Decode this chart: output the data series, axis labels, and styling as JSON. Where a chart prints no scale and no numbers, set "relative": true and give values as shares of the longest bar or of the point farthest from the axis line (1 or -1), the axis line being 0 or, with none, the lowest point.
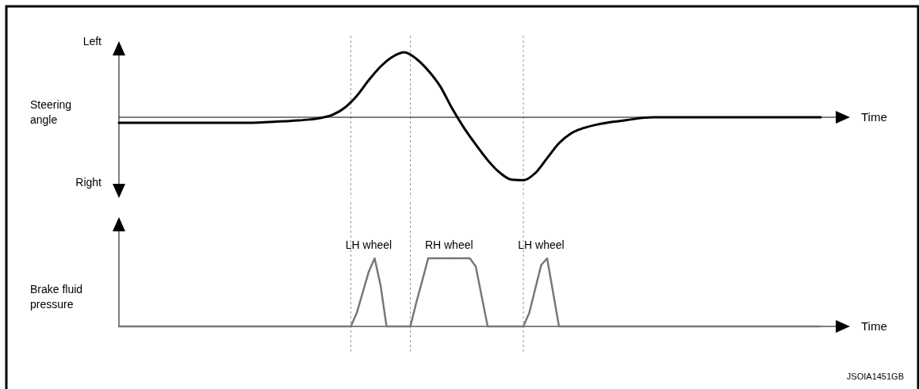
{
  "chart_data": [
    {
      "type": "line",
      "relative": true,
      "ylabel": "Steering angle",
      "xlabel": "Time",
      "line_style": "solid",
      "grid": "x",
      "annotations": [
        "Left",
        "Right"
      ],
      "categories": [
        null,
        null,
        null,
        null,
        null,
        null,
        null,
        null,
        null,
        null,
        null,
        null,
        null,
        null,
        null,
        null,
        null,
        null,
        null,
        null,
        null,
        null,
        null,
        null,
        null,
        null,
        null,
        null,
        null,
        null,
        null,
        null,
        null,
        null,
        null,
        null,
        null,
        null,
        null,
        null,
        null,
        null,
        null,
        null,
        null,
        null,
        null,
        null,
        null,
        null,
        null,
        null,
        null,
        null,
        null,
        null,
        null,
        null,
        null,
        null
      ],
      "series": [
        {
          "color": "#000000",
          "values": [
            -0.085,
            -0.085,
            -0.085,
            -0.085,
            -0.085,
            -0.085,
            -0.085,
            -0.085,
            -0.085,
            -0.085,
            -0.085,
            -0.085,
            -0.08,
            -0.07,
            -0.06,
            -0.05,
            -0.035,
            -0.01,
            0.04,
            0.15,
            0.33,
            0.57,
            0.78,
            0.93,
            1,
            0.9,
            0.72,
            0.48,
            0.14,
            -0.16,
            -0.42,
            -0.66,
            -0.85,
            -0.96,
            -0.97,
            -0.86,
            -0.63,
            -0.4,
            -0.25,
            -0.17,
            -0.12,
            -0.085,
            -0.06,
            -0.035,
            -0.01,
            0,
            0,
            0,
            0,
            0,
            0,
            0,
            0,
            0,
            0,
            0,
            0,
            0,
            0,
            0
          ]
        }
      ]
    },
    {
      "type": "line",
      "relative": true,
      "ylabel": "Brake fluid pressure",
      "xlabel": "Time",
      "line_style": "dotted",
      "grid": "x",
      "annotations": [
        "LH wheel",
        "RH wheel",
        "LH wheel",
        "JSOIA1451GB"
      ],
      "categories": [
        null,
        null,
        null,
        null,
        null,
        null,
        null,
        null,
        null,
        null,
        null,
        null,
        null,
        null,
        null,
        null,
        null,
        null,
        null,
        null,
        null,
        null,
        null,
        null,
        null,
        null,
        null,
        null,
        null,
        null,
        null,
        null,
        null,
        null,
        null,
        null,
        null,
        null,
        null,
        null,
        null,
        null,
        null,
        null,
        null,
        null,
        null,
        null,
        null,
        null,
        null,
        null,
        null,
        null,
        null,
        null,
        null,
        null,
        null,
        null,
        null,
        null,
        null,
        null,
        null,
        null,
        null,
        null,
        null,
        null,
        null,
        null,
        null,
        null,
        null,
        null,
        null,
        null,
        null,
        null,
        null,
        null,
        null,
        null,
        null,
        null,
        null,
        null,
        null,
        null,
        null,
        null,
        null,
        null,
        null,
        null,
        null,
        null,
        null,
        null,
        null,
        null,
        null,
        null,
        null,
        null,
        null,
        null,
        null,
        null,
        null,
        null,
        null,
        null,
        null,
        null,
        null,
        null,
        null
      ],
      "series": [
        {
          "color": "#777777",
          "values": [
            0,
            0,
            0,
            0,
            0,
            0,
            0,
            0,
            0,
            0,
            0,
            0,
            0,
            0,
            0,
            0,
            0,
            0,
            0,
            0,
            0,
            0,
            0,
            0,
            0,
            0,
            0,
            0,
            0,
            0,
            0,
            0,
            0,
            0,
            0,
            0,
            0,
            0,
            0,
            0,
            0.2,
            0.5,
            0.8,
            1,
            0.6,
            0,
            0,
            0,
            0,
            0,
            0.35,
            0.67,
            1,
            1,
            1,
            1,
            1,
            1,
            1,
            1,
            0.88,
            0.44,
            0,
            0,
            0,
            0,
            0,
            0,
            0,
            0.2,
            0.55,
            0.9,
            1,
            0.5,
            0,
            0,
            0,
            0,
            0,
            0,
            0,
            0,
            0,
            0,
            0,
            0,
            0,
            0,
            0,
            0,
            0,
            0,
            0,
            0,
            0,
            0,
            0,
            0,
            0,
            0,
            0,
            0,
            0,
            0,
            0,
            0,
            0,
            0,
            0,
            0,
            0,
            0,
            0,
            0,
            0,
            0,
            0,
            0,
            0
          ]
        }
      ]
    }
  ]
}
